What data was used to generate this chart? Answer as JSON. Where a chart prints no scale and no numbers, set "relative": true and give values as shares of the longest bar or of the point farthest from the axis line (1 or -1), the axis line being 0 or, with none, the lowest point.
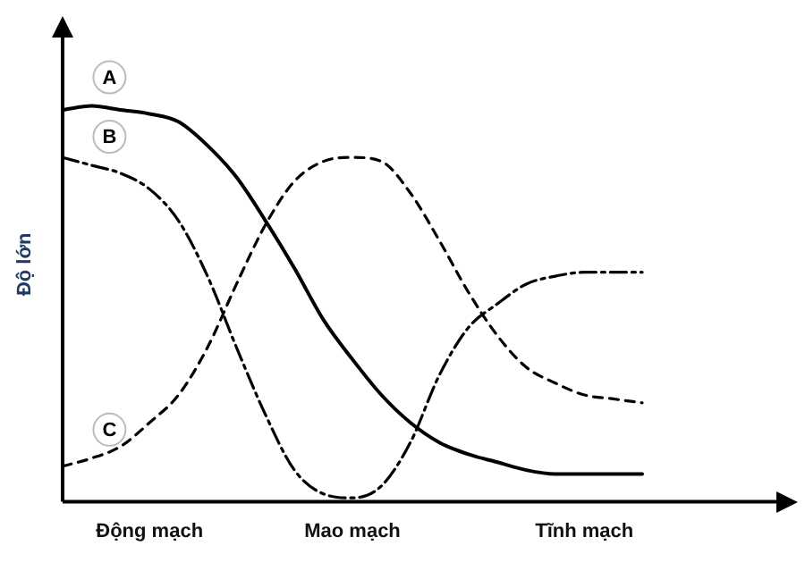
{
  "chart_data": {
    "type": "line",
    "relative": true,
    "ylabel": "Độ lớn",
    "legend": false,
    "grid": false,
    "marker": "none",
    "tick_labels": "x",
    "categories": [
      null,
      null,
      null,
      "Động mạch",
      null,
      null,
      null,
      null,
      null,
      null,
      "Mao mạch",
      null,
      null,
      null,
      null,
      null,
      null,
      null,
      "Tĩnh mạch",
      null,
      null,
      null,
      null,
      null,
      null,
      null
    ],
    "series": [
      {
        "name": "A",
        "color": "#000000",
        "line_style": "solid",
        "values": [
          0.99,
          1.0,
          0.99,
          0.98,
          0.96,
          0.9,
          0.82,
          0.71,
          0.59,
          0.46,
          0.36,
          0.27,
          0.2,
          0.15,
          0.12,
          0.1,
          0.08,
          0.07,
          0.07,
          0.07,
          0.07,
          null,
          null,
          null,
          null,
          null
        ]
      },
      {
        "name": "B",
        "color": "#000000",
        "line_style": "dashdot",
        "values": [
          0.87,
          0.85,
          0.83,
          0.79,
          0.71,
          0.57,
          0.39,
          0.22,
          0.08,
          0.02,
          0.01,
          0.04,
          0.15,
          0.32,
          0.44,
          0.5,
          0.55,
          0.57,
          0.58,
          0.58,
          0.58,
          null,
          null,
          null,
          null,
          null
        ]
      },
      {
        "name": "C",
        "color": "#000000",
        "line_style": "dashed",
        "values": [
          0.09,
          0.11,
          0.14,
          0.2,
          0.27,
          0.39,
          0.55,
          0.7,
          0.81,
          0.86,
          0.87,
          0.86,
          0.78,
          0.66,
          0.53,
          0.42,
          0.34,
          0.3,
          0.27,
          0.26,
          0.25,
          null,
          null,
          null,
          null,
          null
        ]
      }
    ]
  }
}
